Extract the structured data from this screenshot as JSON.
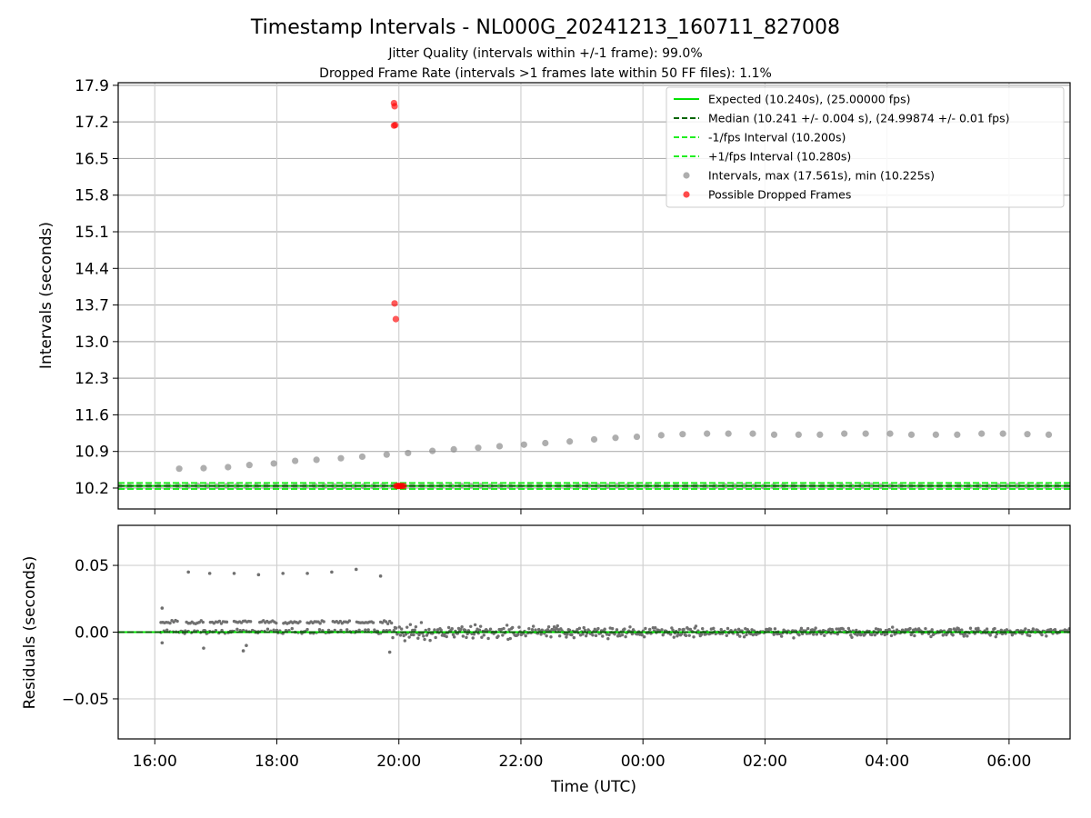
{
  "figure": {
    "title": "Timestamp Intervals - NL000G_20241213_160711_827008",
    "subtitle_jitter": "Jitter Quality (intervals within +/-1 frame): 99.0%",
    "subtitle_dropped": "Dropped Frame Rate (intervals >1 frames late within 50 FF files): 1.1%"
  },
  "chart_data": [
    {
      "type": "scatter",
      "panel": "intervals",
      "ylabel": "Intervals (seconds)",
      "xlabel": "",
      "ylim": [
        9.8,
        17.95
      ],
      "yticks": [
        "10.2",
        "10.9",
        "11.6",
        "12.3",
        "13.0",
        "13.7",
        "14.4",
        "15.1",
        "15.8",
        "16.5",
        "17.2",
        "17.9"
      ],
      "xlim_hours": [
        15.4,
        31.0
      ],
      "xticks": [
        "16:00",
        "18:00",
        "20:00",
        "22:00",
        "00:00",
        "02:00",
        "04:00",
        "06:00"
      ],
      "grid": true,
      "legend_position": "top-right",
      "reference_lines": [
        {
          "name": "Expected (10.240s), (25.00000 fps)",
          "y": 10.24,
          "style": "solid",
          "color": "#00e000"
        },
        {
          "name": "Median (10.241 +/- 0.004 s), (24.99874 +/- 0.01 fps)",
          "y": 10.241,
          "style": "dashed",
          "color": "#006400"
        },
        {
          "name": "-1/fps Interval (10.200s)",
          "y": 10.2,
          "style": "dashed",
          "color": "#22ee22"
        },
        {
          "name": "+1/fps Interval (10.280s)",
          "y": 10.28,
          "style": "dashed",
          "color": "#22ee22"
        }
      ],
      "series": [
        {
          "name": "Intervals, max (17.561s), min (10.225s)",
          "color": "#8c8c8c",
          "note": "dense band at ~10.24 s across the full time range plus a slowly rising trend of points",
          "trend_points": [
            [
              16.4,
              10.57
            ],
            [
              16.8,
              10.58
            ],
            [
              17.2,
              10.6
            ],
            [
              17.55,
              10.64
            ],
            [
              17.95,
              10.67
            ],
            [
              18.3,
              10.72
            ],
            [
              18.65,
              10.74
            ],
            [
              19.05,
              10.77
            ],
            [
              19.4,
              10.8
            ],
            [
              19.8,
              10.84
            ],
            [
              20.15,
              10.87
            ],
            [
              20.55,
              10.91
            ],
            [
              20.9,
              10.94
            ],
            [
              21.3,
              10.97
            ],
            [
              21.65,
              11.0
            ],
            [
              22.05,
              11.03
            ],
            [
              22.4,
              11.06
            ],
            [
              22.8,
              11.09
            ],
            [
              23.2,
              11.13
            ],
            [
              23.55,
              11.16
            ],
            [
              23.9,
              11.18
            ],
            [
              24.3,
              11.21
            ],
            [
              24.65,
              11.23
            ],
            [
              25.05,
              11.24
            ],
            [
              25.4,
              11.24
            ],
            [
              25.8,
              11.24
            ],
            [
              26.15,
              11.22
            ],
            [
              26.55,
              11.22
            ],
            [
              26.9,
              11.22
            ],
            [
              27.3,
              11.24
            ],
            [
              27.65,
              11.24
            ],
            [
              28.05,
              11.24
            ],
            [
              28.4,
              11.22
            ],
            [
              28.8,
              11.22
            ],
            [
              29.15,
              11.22
            ],
            [
              29.55,
              11.24
            ],
            [
              29.9,
              11.24
            ],
            [
              30.3,
              11.23
            ],
            [
              30.65,
              11.22
            ]
          ]
        },
        {
          "name": "Possible Dropped Frames",
          "color": "#ff0000",
          "points": [
            [
              19.92,
              17.56
            ],
            [
              19.93,
              17.5
            ],
            [
              19.92,
              17.13
            ],
            [
              19.94,
              17.14
            ],
            [
              19.93,
              13.73
            ],
            [
              19.95,
              13.43
            ],
            [
              19.96,
              10.24
            ],
            [
              19.98,
              10.24
            ],
            [
              20.0,
              10.24
            ],
            [
              20.02,
              10.24
            ],
            [
              20.05,
              10.24
            ],
            [
              20.08,
              10.24
            ]
          ]
        }
      ]
    },
    {
      "type": "scatter",
      "panel": "residuals",
      "ylabel": "Residuals (seconds)",
      "xlabel": "Time (UTC)",
      "ylim": [
        -0.08,
        0.08
      ],
      "yticks": [
        "0.05",
        "0.00",
        "−0.05"
      ],
      "yticks_values": [
        0.05,
        0.0,
        -0.05
      ],
      "xticks": [
        "16:00",
        "18:00",
        "20:00",
        "22:00",
        "00:00",
        "02:00",
        "04:00",
        "06:00"
      ],
      "grid": true,
      "reference_lines": [
        {
          "name": "",
          "y": 0.0,
          "style": "solid",
          "color": "#00e000"
        },
        {
          "name": "",
          "y": 0.0,
          "style": "dashed",
          "color": "#006400"
        }
      ],
      "series": [
        {
          "name": "",
          "color": "#707070",
          "note": "dense residual cloud between about -0.01 and +0.012 s across the time range",
          "outliers": [
            [
              16.55,
              0.045
            ],
            [
              16.9,
              0.044
            ],
            [
              17.3,
              0.044
            ],
            [
              17.7,
              0.043
            ],
            [
              18.1,
              0.044
            ],
            [
              18.5,
              0.044
            ],
            [
              18.9,
              0.045
            ],
            [
              19.3,
              0.047
            ],
            [
              19.7,
              0.042
            ],
            [
              16.12,
              0.018
            ],
            [
              16.12,
              -0.008
            ],
            [
              16.8,
              -0.012
            ],
            [
              17.45,
              -0.014
            ],
            [
              19.85,
              -0.015
            ],
            [
              17.5,
              -0.01
            ]
          ]
        }
      ]
    }
  ]
}
